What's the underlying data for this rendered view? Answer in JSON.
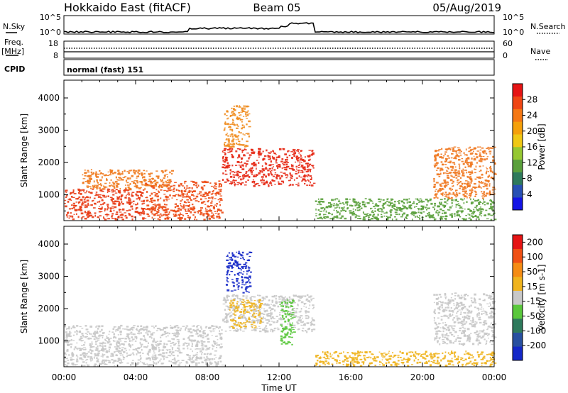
{
  "header": {
    "station": "Hokkaido East (fitACF)",
    "beam": "Beam 05",
    "date": "05/Aug/2019"
  },
  "top_strip": {
    "nsky_label": "N.Sky",
    "nsky_ticks": [
      "10^5",
      "10^0"
    ],
    "nsearch_label": "N.Search",
    "nsearch_ticks": [
      "10^5",
      "10^0"
    ],
    "freq_label": "Freq.",
    "freq_unit": "[MHz]",
    "freq_ticks": [
      "18",
      "8"
    ],
    "nave_label": "Nave",
    "nave_ticks": [
      "60",
      "0"
    ],
    "cpid_label": "CPID",
    "cpid_value": "normal (fast) 151"
  },
  "chart_data": [
    {
      "type": "heatmap",
      "name": "power-panel",
      "ylabel": "Slant Range [km]",
      "yticks": [
        1000,
        2000,
        3000,
        4000
      ],
      "ylim": [
        200,
        4550
      ],
      "xlim": [
        0,
        24
      ],
      "colorbar": {
        "label": "Power [dB]",
        "ticks": [
          "4",
          "8",
          "12",
          "16",
          "20",
          "24",
          "28"
        ],
        "colors": [
          "#1414e6",
          "#2850b4",
          "#2e7a5c",
          "#5aa03c",
          "#96c832",
          "#f0c814",
          "#f5a00a",
          "#f57814",
          "#f04614",
          "#e61414"
        ]
      },
      "blobs": [
        {
          "t": [
            0.0,
            4.5
          ],
          "r": [
            250,
            1200
          ],
          "c": "#e83a14"
        },
        {
          "t": [
            4.5,
            8.8
          ],
          "r": [
            250,
            1450
          ],
          "c": "#ec4a14"
        },
        {
          "t": [
            1.0,
            6.0
          ],
          "r": [
            1200,
            1800
          ],
          "c": "#f07a1e"
        },
        {
          "t": [
            8.8,
            13.9
          ],
          "r": [
            1300,
            2450
          ],
          "c": "#e62814"
        },
        {
          "t": [
            8.9,
            10.3
          ],
          "r": [
            2500,
            3800
          ],
          "c": "#f08c1e"
        },
        {
          "t": [
            14.0,
            24.0
          ],
          "r": [
            250,
            900
          ],
          "c": "#5aa03c"
        },
        {
          "t": [
            20.6,
            24.0
          ],
          "r": [
            900,
            2500
          ],
          "c": "#f07820"
        }
      ]
    },
    {
      "type": "heatmap",
      "name": "velocity-panel",
      "ylabel": "Slant Range [km]",
      "yticks": [
        1000,
        2000,
        3000,
        4000
      ],
      "ylim": [
        200,
        4550
      ],
      "xlim": [
        0,
        24
      ],
      "xticks": [
        "00:00",
        "04:00",
        "08:00",
        "12:00",
        "16:00",
        "20:00",
        "00:00"
      ],
      "xlabel": "Time UT",
      "colorbar": {
        "label": "Velocity [m s-1]",
        "ticks": [
          "200",
          "100",
          "50",
          "15",
          "-15",
          "-50",
          "-100",
          "-200"
        ],
        "colors": [
          "#1428c8",
          "#2850a0",
          "#2e7a5c",
          "#5ac83c",
          "#c8c8c8",
          "#f0b41e",
          "#f58c14",
          "#f05014",
          "#e61414"
        ]
      },
      "blobs": [
        {
          "t": [
            0.0,
            8.8
          ],
          "r": [
            250,
            1500
          ],
          "c": "#c8c8c8"
        },
        {
          "t": [
            8.8,
            13.9
          ],
          "r": [
            1300,
            2450
          ],
          "c": "#c8c8c8"
        },
        {
          "t": [
            9.2,
            11.0
          ],
          "r": [
            1400,
            2300
          ],
          "c": "#f0b41e"
        },
        {
          "t": [
            12.0,
            12.8
          ],
          "r": [
            900,
            2300
          ],
          "c": "#5ac83c"
        },
        {
          "t": [
            9.0,
            10.4
          ],
          "r": [
            2500,
            3800
          ],
          "c": "#1428c8"
        },
        {
          "t": [
            14.0,
            24.0
          ],
          "r": [
            250,
            700
          ],
          "c": "#f0b41e"
        },
        {
          "t": [
            20.6,
            24.0
          ],
          "r": [
            900,
            2500
          ],
          "c": "#c8c8c8"
        }
      ]
    }
  ]
}
